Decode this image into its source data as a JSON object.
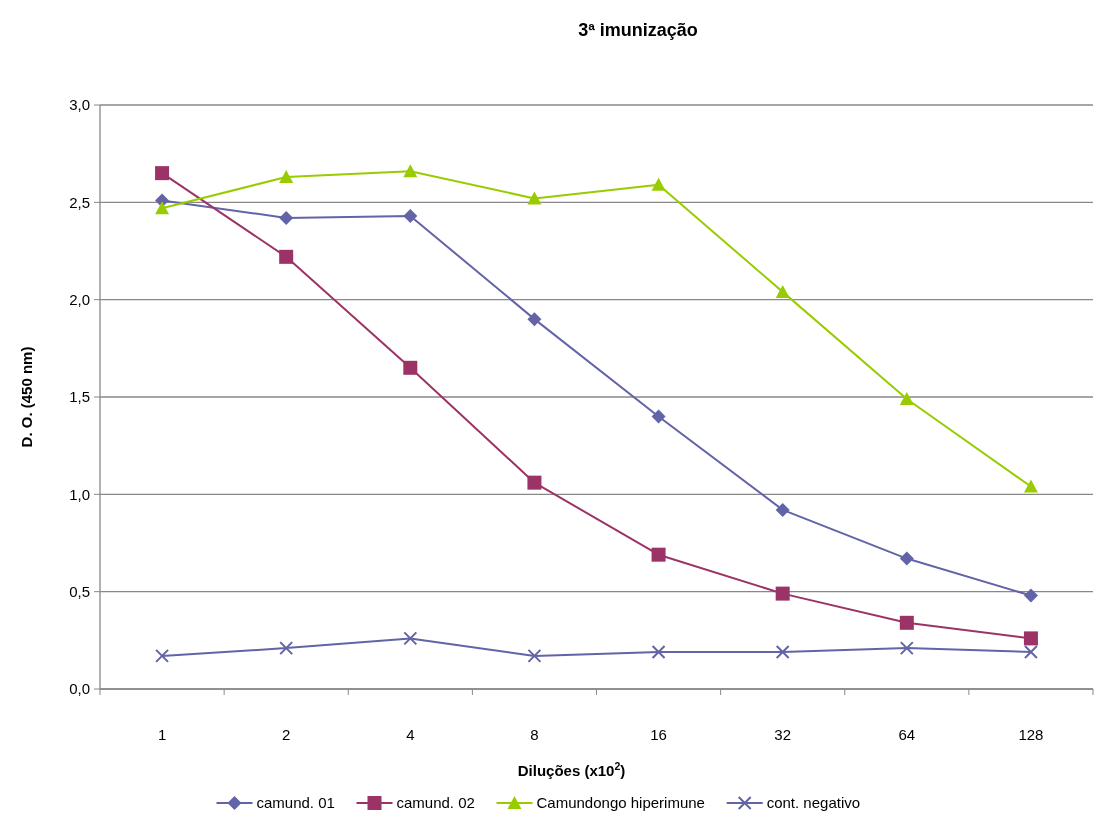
{
  "chart_data": {
    "type": "line",
    "title": "3ª imunização",
    "xlabel": "Diluções (x10$^{2}$)",
    "ylabel": "D. O. (450 nm)",
    "categories": [
      "1",
      "2",
      "4",
      "8",
      "16",
      "32",
      "64",
      "128"
    ],
    "series": [
      {
        "name": "camund. 01",
        "color": "#6264a7",
        "marker": "diamond",
        "values": [
          2.51,
          2.42,
          2.43,
          1.9,
          1.4,
          0.92,
          0.67,
          0.48
        ]
      },
      {
        "name": "camund. 02",
        "color": "#9c3366",
        "marker": "square",
        "values": [
          2.65,
          2.22,
          1.65,
          1.06,
          0.69,
          0.49,
          0.34,
          0.26
        ]
      },
      {
        "name": "Camundongo hiperimune",
        "color": "#99cc00",
        "marker": "triangle",
        "values": [
          2.47,
          2.63,
          2.66,
          2.52,
          2.59,
          2.04,
          1.49,
          1.04
        ]
      },
      {
        "name": "cont. negativo",
        "color": "#6264a7",
        "marker": "cross",
        "values": [
          0.17,
          0.21,
          0.26,
          0.17,
          0.19,
          0.19,
          0.21,
          0.19
        ]
      }
    ],
    "ylim": [
      0,
      3
    ],
    "yticks": [
      {
        "value": 0,
        "label": "0,0"
      },
      {
        "value": 0.5,
        "label": "0,5"
      },
      {
        "value": 1,
        "label": "1,0"
      },
      {
        "value": 1.5,
        "label": "1,5"
      },
      {
        "value": 2,
        "label": "2,0"
      },
      {
        "value": 2.5,
        "label": "2,5"
      },
      {
        "value": 3,
        "label": "3,0"
      }
    ],
    "grid": "y",
    "legend": "bottom"
  }
}
